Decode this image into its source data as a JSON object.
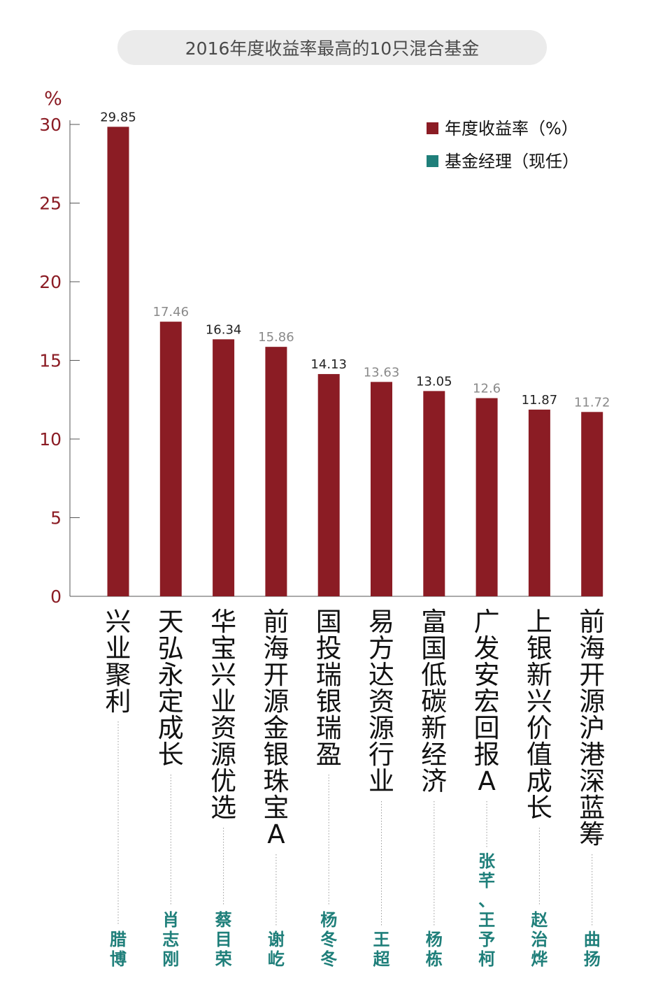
{
  "chart_data": {
    "type": "bar",
    "title": "2016年度收益率最高的10只混合基金",
    "ylabel": "%",
    "ylim": [
      0,
      30
    ],
    "yticks": [
      0,
      5,
      10,
      15,
      20,
      25,
      30
    ],
    "grid": false,
    "legend_position": "top-right",
    "categories": [
      "兴业聚利",
      "天弘永定成长",
      "华宝兴业资源优选",
      "前海开源金银珠宝A",
      "国投瑞银瑞盈",
      "易方达资源行业",
      "富国低碳新经济",
      "广发安宏回报A",
      "上银新兴价值成长",
      "前海开源沪港深蓝筹"
    ],
    "managers": [
      "腊博",
      "肖志刚",
      "蔡目荣",
      "谢屹",
      "杨冬冬",
      "王超",
      "杨栋",
      "张芊、王予柯",
      "赵治烨",
      "曲扬"
    ],
    "series": [
      {
        "name": "年度收益率（%）",
        "values": [
          29.85,
          17.46,
          16.34,
          15.86,
          14.13,
          13.63,
          13.05,
          12.6,
          11.87,
          11.72
        ]
      },
      {
        "name": "基金经理（现任）"
      }
    ],
    "value_label_colors": [
      "#222222",
      "#8a8a8a",
      "#222222",
      "#8a8a8a",
      "#222222",
      "#8a8a8a",
      "#222222",
      "#8a8a8a",
      "#222222",
      "#8a8a8a"
    ],
    "colors": {
      "bar": "#8b1c24",
      "manager": "#1f7f7a",
      "axis": "#8b1c24"
    }
  }
}
